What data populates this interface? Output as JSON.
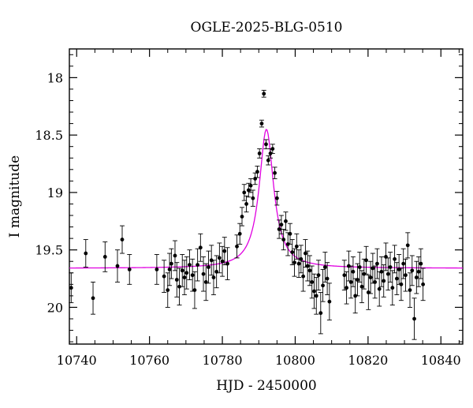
{
  "chart_data": {
    "type": "scatter",
    "title": "OGLE-2025-BLG-0510",
    "xlabel": "HJD - 2450000",
    "ylabel": "I magnitude",
    "xlim": [
      10738,
      10846
    ],
    "ylim": [
      20.32,
      17.75
    ],
    "y_inverted": true,
    "x_ticks": [
      10740,
      10760,
      10780,
      10800,
      10820,
      10840
    ],
    "y_ticks": [
      18,
      18.5,
      19,
      19.5,
      20
    ],
    "x_tick_labels": [
      "10740",
      "10760",
      "10780",
      "10800",
      "10820",
      "10840"
    ],
    "y_tick_labels": [
      "18",
      "18.5",
      "19",
      "19.5",
      "20"
    ],
    "colors": {
      "data": "#000000",
      "model": "#e000e0",
      "frame": "#000000"
    },
    "grid": false,
    "series": [
      {
        "kind": "points_with_errorbars",
        "x": [
          10738.5,
          10742.5,
          10744.5,
          10747.8,
          10751.2,
          10752.5,
          10754.5,
          10762.0,
          10764.0,
          10765.0,
          10765.5,
          10766.0,
          10767.0,
          10767.5,
          10768.2,
          10769.0,
          10769.6,
          10770.2,
          10771.0,
          10771.8,
          10772.4,
          10773.2,
          10774.0,
          10774.8,
          10775.5,
          10776.2,
          10777.0,
          10777.6,
          10778.4,
          10779.2,
          10780.0,
          10780.6,
          10781.4,
          10784.0,
          10784.8,
          10785.4,
          10786.0,
          10786.6,
          10787.2,
          10787.8,
          10788.4,
          10789.0,
          10789.6,
          10790.2,
          10790.8,
          10791.4,
          10792.0,
          10792.6,
          10793.2,
          10793.8,
          10794.4,
          10795.0,
          10795.6,
          10796.2,
          10796.8,
          10797.4,
          10798.0,
          10798.6,
          10799.2,
          10799.8,
          10800.4,
          10801.0,
          10801.6,
          10802.2,
          10802.8,
          10803.4,
          10804.0,
          10804.6,
          10805.2,
          10805.8,
          10806.4,
          10807.0,
          10807.6,
          10808.2,
          10808.8,
          10809.4,
          10813.5,
          10814.1,
          10814.7,
          10815.3,
          10815.9,
          10816.5,
          10817.1,
          10817.7,
          10818.3,
          10818.9,
          10819.5,
          10820.1,
          10820.7,
          10821.3,
          10821.9,
          10822.5,
          10823.1,
          10823.7,
          10824.3,
          10824.9,
          10825.5,
          10826.1,
          10826.7,
          10827.3,
          10827.9,
          10828.5,
          10829.1,
          10829.7,
          10830.3,
          10830.9,
          10831.5,
          10832.1,
          10832.7,
          10833.3,
          10833.9,
          10834.5,
          10835.1
        ],
        "y": [
          19.83,
          19.53,
          19.92,
          19.56,
          19.64,
          19.41,
          19.67,
          19.67,
          19.73,
          19.85,
          19.67,
          19.62,
          19.55,
          19.76,
          19.82,
          19.68,
          19.74,
          19.7,
          19.63,
          19.72,
          19.85,
          19.63,
          19.48,
          19.71,
          19.78,
          19.65,
          19.59,
          19.74,
          19.69,
          19.57,
          19.6,
          19.51,
          19.62,
          19.47,
          19.36,
          19.21,
          19.0,
          19.1,
          18.98,
          18.94,
          19.05,
          18.88,
          18.82,
          18.66,
          18.4,
          18.14,
          18.58,
          18.72,
          18.66,
          18.62,
          18.83,
          19.05,
          19.32,
          19.28,
          19.41,
          19.25,
          19.45,
          19.36,
          19.52,
          19.61,
          19.47,
          19.62,
          19.58,
          19.73,
          19.53,
          19.64,
          19.68,
          19.78,
          19.86,
          19.9,
          19.72,
          20.05,
          19.81,
          19.65,
          19.75,
          19.95,
          19.72,
          19.83,
          19.64,
          19.78,
          19.69,
          19.9,
          19.76,
          19.65,
          19.82,
          19.71,
          19.59,
          19.87,
          19.74,
          19.66,
          19.78,
          19.62,
          19.84,
          19.69,
          19.77,
          19.56,
          19.71,
          19.65,
          19.83,
          19.58,
          19.75,
          19.67,
          19.8,
          19.62,
          19.72,
          19.46,
          19.85,
          19.68,
          20.1,
          19.74,
          19.69,
          19.62,
          19.8
        ],
        "err": [
          0.13,
          0.12,
          0.14,
          0.13,
          0.14,
          0.12,
          0.13,
          0.13,
          0.14,
          0.15,
          0.14,
          0.13,
          0.13,
          0.15,
          0.16,
          0.14,
          0.15,
          0.14,
          0.13,
          0.14,
          0.16,
          0.14,
          0.12,
          0.15,
          0.16,
          0.14,
          0.13,
          0.15,
          0.14,
          0.13,
          0.13,
          0.12,
          0.14,
          0.1,
          0.09,
          0.08,
          0.07,
          0.07,
          0.06,
          0.06,
          0.07,
          0.05,
          0.05,
          0.04,
          0.03,
          0.03,
          0.04,
          0.04,
          0.04,
          0.04,
          0.05,
          0.06,
          0.08,
          0.08,
          0.09,
          0.08,
          0.1,
          0.09,
          0.11,
          0.12,
          0.11,
          0.12,
          0.12,
          0.13,
          0.12,
          0.13,
          0.13,
          0.14,
          0.15,
          0.16,
          0.13,
          0.18,
          0.14,
          0.13,
          0.14,
          0.16,
          0.13,
          0.14,
          0.13,
          0.14,
          0.13,
          0.15,
          0.14,
          0.13,
          0.14,
          0.13,
          0.12,
          0.15,
          0.14,
          0.13,
          0.14,
          0.13,
          0.15,
          0.13,
          0.14,
          0.12,
          0.14,
          0.13,
          0.15,
          0.12,
          0.14,
          0.13,
          0.14,
          0.13,
          0.14,
          0.11,
          0.15,
          0.13,
          0.18,
          0.14,
          0.13,
          0.13,
          0.14
        ]
      },
      {
        "kind": "model_curve",
        "baseline": 19.66,
        "peak_mag": 18.45,
        "t0": 10792.1,
        "width": 2.4
      }
    ]
  }
}
